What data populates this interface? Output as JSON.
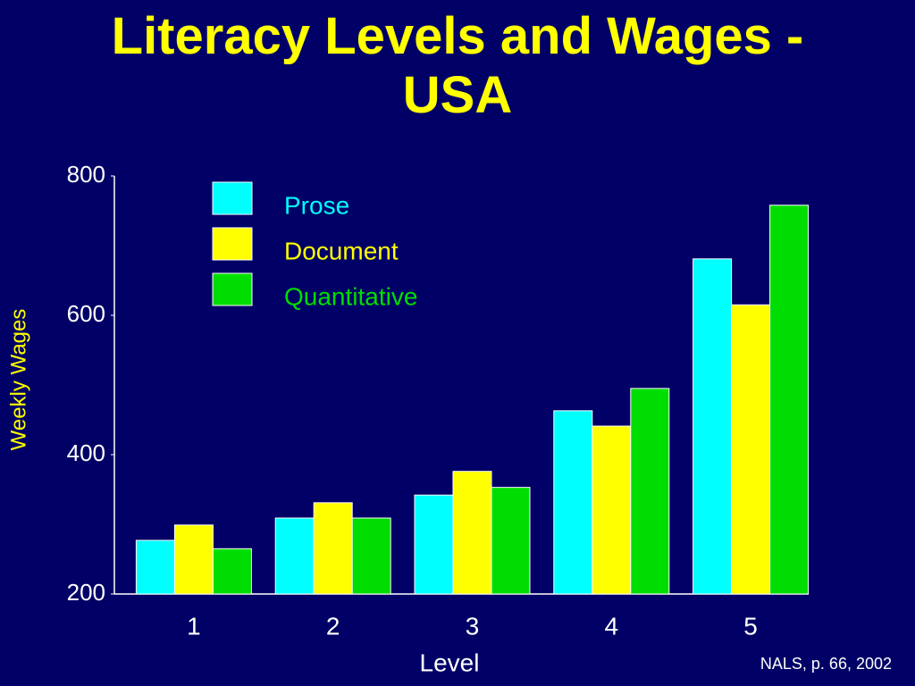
{
  "chart_data": {
    "type": "bar",
    "title": "Literacy Levels and Wages - USA",
    "x_label": "Level",
    "y_label": "Weekly Wages",
    "source": "NALS, p. 66, 2002",
    "categories": [
      "1",
      "2",
      "3",
      "4",
      "5"
    ],
    "series": [
      {
        "name": "Prose",
        "color": "#00ffff",
        "values": [
          277,
          309,
          342,
          463,
          681
        ]
      },
      {
        "name": "Document",
        "color": "#ffff00",
        "values": [
          299,
          331,
          376,
          441,
          615
        ]
      },
      {
        "name": "Quantitative",
        "color": "#00dd00",
        "values": [
          265,
          309,
          353,
          495,
          758
        ]
      }
    ],
    "ylim": [
      200,
      800
    ],
    "yticks": [
      200,
      400,
      600,
      800
    ],
    "grid": false
  }
}
